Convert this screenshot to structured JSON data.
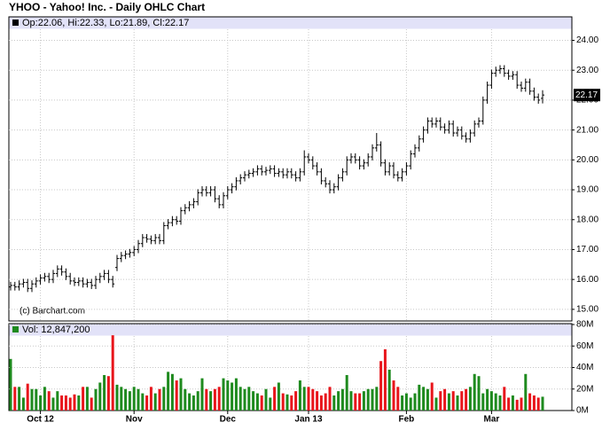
{
  "chart_data": [
    {
      "type": "ohlc",
      "title": "YHOO - Yahoo! Inc. - Daily OHLC Chart",
      "legend": "Op:22.06, Hi:22.33, Lo:21.89, Cl:22.17",
      "annotation": "(c) Barchart.com",
      "color": "#000000",
      "grid": true,
      "ylim": [
        14.7,
        24.4
      ],
      "yticks": [
        {
          "value": 15,
          "label": "15.00"
        },
        {
          "value": 16,
          "label": "16.00"
        },
        {
          "value": 17,
          "label": "17.00"
        },
        {
          "value": 18,
          "label": "18.00"
        },
        {
          "value": 19,
          "label": "19.00"
        },
        {
          "value": 20,
          "label": "20.00"
        },
        {
          "value": 21,
          "label": "21.00"
        },
        {
          "value": 22,
          "label": "22.00"
        },
        {
          "value": 23,
          "label": "23.00"
        },
        {
          "value": 24,
          "label": "24.00"
        }
      ],
      "open": [
        15.75,
        15.8,
        15.75,
        15.85,
        15.9,
        15.7,
        15.85,
        15.95,
        16.05,
        16.1,
        16,
        16.2,
        16.35,
        16.25,
        16.1,
        15.95,
        15.9,
        15.95,
        15.85,
        15.9,
        15.8,
        16,
        16.1,
        16.2,
        16,
        16.4,
        16.7,
        16.8,
        16.85,
        16.9,
        17,
        17.2,
        17.4,
        17.35,
        17.3,
        17.4,
        17.3,
        17.8,
        17.9,
        18,
        17.95,
        18.3,
        18.4,
        18.5,
        18.6,
        18.9,
        19,
        18.9,
        19,
        18.7,
        18.5,
        18.8,
        19,
        19.1,
        19.3,
        19.4,
        19.5,
        19.55,
        19.6,
        19.7,
        19.6,
        19.65,
        19.7,
        19.55,
        19.6,
        19.5,
        19.6,
        19.5,
        19.4,
        19.6,
        20.1,
        20,
        19.8,
        19.6,
        19.3,
        19.2,
        19,
        19.1,
        19.4,
        19.6,
        20,
        20.1,
        20,
        19.8,
        19.9,
        20.1,
        20.4,
        20.5,
        19.9,
        19.6,
        19.8,
        19.5,
        19.4,
        19.6,
        19.8,
        20.2,
        20.4,
        20.7,
        21,
        21.3,
        21.2,
        21.3,
        21.1,
        21,
        21.2,
        20.9,
        21,
        20.8,
        20.7,
        20.9,
        21.2,
        21.3,
        22,
        22.5,
        22.9,
        23,
        23.05,
        22.9,
        22.8,
        22.85,
        22.5,
        22.4,
        22.6,
        22.3,
        22.1,
        22.06
      ],
      "high": [
        15.92,
        15.92,
        15.97,
        16.02,
        16.02,
        15.97,
        16.07,
        16.17,
        16.22,
        16.22,
        16.32,
        16.47,
        16.47,
        16.37,
        16.22,
        16.07,
        16.07,
        16.07,
        16.02,
        16.02,
        16.12,
        16.22,
        16.32,
        16.32,
        16.12,
        16.82,
        16.92,
        16.97,
        17.02,
        17.12,
        17.32,
        17.52,
        17.52,
        17.47,
        17.52,
        17.52,
        17.92,
        18.02,
        18.12,
        18.12,
        18.42,
        18.52,
        18.62,
        18.72,
        19.02,
        19.12,
        19.12,
        19.12,
        19.12,
        18.82,
        18.92,
        19.12,
        19.22,
        19.42,
        19.52,
        19.62,
        19.67,
        19.72,
        19.82,
        19.82,
        19.77,
        19.82,
        19.82,
        19.72,
        19.72,
        19.72,
        19.72,
        19.62,
        19.72,
        20.32,
        20.22,
        20.12,
        19.92,
        19.72,
        19.42,
        19.32,
        19.22,
        19.52,
        19.72,
        20.12,
        20.22,
        20.22,
        20.12,
        20.02,
        20.22,
        20.52,
        20.9,
        20.62,
        20.02,
        19.92,
        19.92,
        19.62,
        19.72,
        19.92,
        20.32,
        20.52,
        20.82,
        21.12,
        21.42,
        21.42,
        21.42,
        21.42,
        21.22,
        21.32,
        21.32,
        21.12,
        21.12,
        20.92,
        21.02,
        21.32,
        21.42,
        22.12,
        22.62,
        23.02,
        23.12,
        23.17,
        23.17,
        23.02,
        22.97,
        22.97,
        22.62,
        22.72,
        22.72,
        22.42,
        22.22,
        22.33
      ],
      "low": [
        15.63,
        15.63,
        15.63,
        15.73,
        15.58,
        15.58,
        15.73,
        15.83,
        15.93,
        15.88,
        15.88,
        16.08,
        16.13,
        15.98,
        15.83,
        15.78,
        15.78,
        15.73,
        15.73,
        15.68,
        15.68,
        15.88,
        15.98,
        15.88,
        15.73,
        16.28,
        16.58,
        16.68,
        16.73,
        16.78,
        16.88,
        17.08,
        17.23,
        17.18,
        17.18,
        17.18,
        17.18,
        17.68,
        17.78,
        17.83,
        17.83,
        18.18,
        18.28,
        18.38,
        18.48,
        18.78,
        18.78,
        18.78,
        18.58,
        18.38,
        18.38,
        18.68,
        18.88,
        18.98,
        19.18,
        19.28,
        19.38,
        19.43,
        19.48,
        19.48,
        19.48,
        19.53,
        19.43,
        19.43,
        19.38,
        19.38,
        19.38,
        19.28,
        19.28,
        19.48,
        19.88,
        19.68,
        19.48,
        19.18,
        19.08,
        18.88,
        18.88,
        18.98,
        19.28,
        19.48,
        19.88,
        19.88,
        19.68,
        19.68,
        19.78,
        19.98,
        20.28,
        19.78,
        19.48,
        19.48,
        19.38,
        19.28,
        19.28,
        19.48,
        19.68,
        20.08,
        20.28,
        20.58,
        20.88,
        21.08,
        21.08,
        20.98,
        20.88,
        20.88,
        20.78,
        20.78,
        20.68,
        20.58,
        20.58,
        20.78,
        21.08,
        21.18,
        21.88,
        22.38,
        22.78,
        22.88,
        22.78,
        22.68,
        22.68,
        22.38,
        22.28,
        22.28,
        22.18,
        21.98,
        21.88,
        21.89
      ],
      "close": [
        15.8,
        15.75,
        15.85,
        15.9,
        15.7,
        15.85,
        15.95,
        16.05,
        16.1,
        16,
        16.2,
        16.35,
        16.25,
        16.1,
        15.95,
        15.9,
        15.95,
        15.85,
        15.9,
        15.8,
        16,
        16.1,
        16.2,
        16,
        15.85,
        16.7,
        16.8,
        16.85,
        16.9,
        17,
        17.2,
        17.4,
        17.35,
        17.3,
        17.4,
        17.3,
        17.8,
        17.9,
        18,
        17.95,
        18.3,
        18.4,
        18.5,
        18.6,
        18.9,
        19,
        18.9,
        19,
        18.7,
        18.5,
        18.8,
        19,
        19.1,
        19.3,
        19.4,
        19.5,
        19.55,
        19.6,
        19.7,
        19.6,
        19.65,
        19.7,
        19.55,
        19.6,
        19.5,
        19.6,
        19.5,
        19.4,
        19.6,
        20.1,
        20,
        19.8,
        19.6,
        19.3,
        19.2,
        19,
        19.1,
        19.4,
        19.6,
        20,
        20.1,
        20,
        19.8,
        19.9,
        20.1,
        20.4,
        20.5,
        19.9,
        19.6,
        19.8,
        19.5,
        19.4,
        19.6,
        19.8,
        20.2,
        20.4,
        20.7,
        21,
        21.3,
        21.2,
        21.3,
        21.1,
        21,
        21.2,
        20.9,
        21,
        20.8,
        20.7,
        20.9,
        21.2,
        21.3,
        22,
        22.5,
        22.9,
        23,
        23.05,
        22.9,
        22.8,
        22.85,
        22.5,
        22.4,
        22.6,
        22.3,
        22.1,
        22,
        22.17
      ]
    },
    {
      "type": "bar",
      "legend": "Vol: 12,847,200",
      "up_color": "#1e8a1e",
      "down_color": "#e8151b",
      "grid": true,
      "ylim": [
        0,
        80
      ],
      "yticks": [
        {
          "value": 0,
          "label": "0M"
        },
        {
          "value": 20,
          "label": "20M"
        },
        {
          "value": 40,
          "label": "40M"
        },
        {
          "value": 60,
          "label": "60M"
        },
        {
          "value": 80,
          "label": "80M"
        }
      ],
      "xticks": [
        {
          "value": 7,
          "label": "Oct 12"
        },
        {
          "value": 29,
          "label": "Nov"
        },
        {
          "value": 51,
          "label": "Dec"
        },
        {
          "value": 70,
          "label": "Jan 13"
        },
        {
          "value": 93,
          "label": "Feb"
        },
        {
          "value": 113,
          "label": "Mar"
        }
      ],
      "values": [
        48,
        22,
        22,
        12,
        25,
        20,
        20,
        14,
        22,
        18,
        12,
        18,
        14,
        14,
        12,
        15,
        14,
        22,
        22,
        12,
        20,
        26,
        33,
        32,
        70,
        24,
        22,
        20,
        18,
        22,
        20,
        16,
        14,
        22,
        16,
        20,
        22,
        36,
        34,
        28,
        30,
        20,
        16,
        14,
        18,
        30,
        20,
        18,
        20,
        22,
        30,
        28,
        26,
        30,
        22,
        20,
        22,
        18,
        16,
        14,
        20,
        12,
        22,
        26,
        16,
        15,
        14,
        18,
        28,
        22,
        22,
        20,
        18,
        14,
        16,
        22,
        14,
        18,
        20,
        33,
        18,
        16,
        16,
        18,
        20,
        20,
        22,
        46,
        57,
        38,
        28,
        22,
        14,
        16,
        12,
        16,
        24,
        22,
        20,
        26,
        12,
        18,
        20,
        16,
        18,
        14,
        18,
        20,
        22,
        34,
        32,
        16,
        20,
        18,
        16,
        14,
        22,
        12,
        14,
        10,
        12,
        34,
        16,
        14,
        12,
        12.8472
      ]
    }
  ]
}
